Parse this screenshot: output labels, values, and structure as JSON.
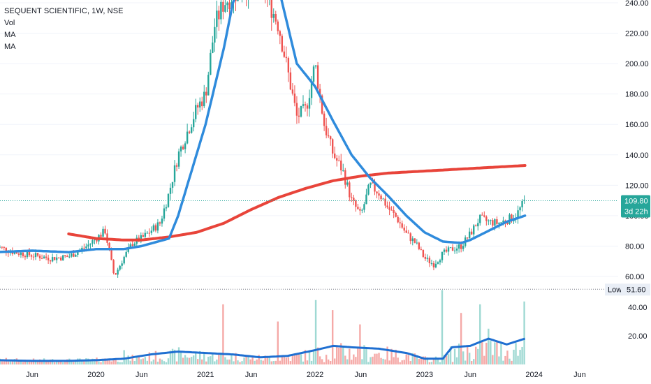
{
  "chart_data": {
    "type": "candlestick",
    "title": "SEQUENT SCIENTIFIC, 1W, NSE",
    "legend": [
      "Vol",
      "MA",
      "MA"
    ],
    "price_axis": {
      "ticks": [
        "240.00",
        "220.00",
        "200.00",
        "180.00",
        "160.00",
        "140.00",
        "120.00",
        "100.00",
        "80.00",
        "60.00"
      ],
      "min": 46,
      "max": 248
    },
    "volume_axis": {
      "ticks": [
        "40.00",
        "20.00"
      ],
      "min": 0,
      "max": 52
    },
    "x_ticks": [
      "Jun",
      "2020",
      "Jun",
      "2021",
      "Jun",
      "2022",
      "Jun",
      "2023",
      "Jun",
      "2024",
      "Jun"
    ],
    "last_price": "109.80",
    "countdown": "3d 22h",
    "low_label": "Low",
    "low_value": "51.60",
    "colors": {
      "up": "#26a69a",
      "down": "#ef5350",
      "ma_fast": "#2f8bdc",
      "ma_slow": "#e8443a",
      "vol_ma": "#1f6fd1",
      "grid": "#f0f3fa",
      "last_price_bg": "#26a69a"
    },
    "price_series_control": [
      [
        "2019-02",
        80
      ],
      [
        "2019-04",
        76
      ],
      [
        "2019-06",
        74
      ],
      [
        "2019-08",
        72
      ],
      [
        "2019-10",
        73
      ],
      [
        "2019-12",
        80
      ],
      [
        "2020-02",
        90
      ],
      [
        "2020-03",
        60
      ],
      [
        "2020-04",
        72
      ],
      [
        "2020-05",
        82
      ],
      [
        "2020-06",
        85
      ],
      [
        "2020-08",
        95
      ],
      [
        "2020-09",
        115
      ],
      [
        "2020-10",
        140
      ],
      [
        "2020-11",
        155
      ],
      [
        "2020-12",
        170
      ],
      [
        "2021-01",
        180
      ],
      [
        "2021-02",
        225
      ],
      [
        "2021-03",
        240
      ],
      [
        "2021-04",
        245
      ],
      [
        "2021-05",
        250
      ],
      [
        "2021-07",
        255
      ],
      [
        "2021-08",
        240
      ],
      [
        "2021-09",
        225
      ],
      [
        "2021-10",
        195
      ],
      [
        "2021-11",
        165
      ],
      [
        "2021-12",
        170
      ],
      [
        "2022-01",
        200
      ],
      [
        "2022-02",
        160
      ],
      [
        "2022-03",
        140
      ],
      [
        "2022-04",
        130
      ],
      [
        "2022-05",
        110
      ],
      [
        "2022-06",
        100
      ],
      [
        "2022-07",
        120
      ],
      [
        "2022-08",
        115
      ],
      [
        "2022-09",
        105
      ],
      [
        "2022-10",
        98
      ],
      [
        "2022-11",
        88
      ],
      [
        "2022-12",
        82
      ],
      [
        "2023-01",
        72
      ],
      [
        "2023-02",
        68
      ],
      [
        "2023-03",
        75
      ],
      [
        "2023-04",
        78
      ],
      [
        "2023-05",
        80
      ],
      [
        "2023-06",
        88
      ],
      [
        "2023-07",
        98
      ],
      [
        "2023-08",
        96
      ],
      [
        "2023-09",
        95
      ],
      [
        "2023-10",
        97
      ],
      [
        "2023-11",
        100
      ],
      [
        "2023-12",
        109.8
      ]
    ],
    "ma_fast_control": [
      [
        "2019-02",
        76
      ],
      [
        "2019-06",
        77
      ],
      [
        "2019-10",
        76
      ],
      [
        "2020-01",
        78
      ],
      [
        "2020-04",
        78
      ],
      [
        "2020-06",
        80
      ],
      [
        "2020-09",
        85
      ],
      [
        "2020-10",
        100
      ],
      [
        "2020-11",
        120
      ],
      [
        "2020-12",
        140
      ],
      [
        "2021-01",
        160
      ],
      [
        "2021-02",
        185
      ],
      [
        "2021-03",
        210
      ],
      [
        "2021-04",
        240
      ],
      [
        "2021-05",
        255
      ],
      [
        "2021-07",
        262
      ],
      [
        "2021-09",
        250
      ],
      [
        "2021-10",
        225
      ],
      [
        "2021-11",
        200
      ],
      [
        "2022-01",
        185
      ],
      [
        "2022-03",
        162
      ],
      [
        "2022-05",
        140
      ],
      [
        "2022-07",
        125
      ],
      [
        "2022-09",
        113
      ],
      [
        "2022-11",
        100
      ],
      [
        "2023-01",
        89
      ],
      [
        "2023-03",
        83
      ],
      [
        "2023-05",
        82
      ],
      [
        "2023-06",
        84
      ],
      [
        "2023-08",
        90
      ],
      [
        "2023-10",
        96
      ],
      [
        "2023-12",
        100
      ]
    ],
    "ma_slow_control": [
      [
        "2019-10",
        88
      ],
      [
        "2020-01",
        85
      ],
      [
        "2020-04",
        84
      ],
      [
        "2020-06",
        84
      ],
      [
        "2020-09",
        86
      ],
      [
        "2020-12",
        89
      ],
      [
        "2021-03",
        95
      ],
      [
        "2021-06",
        104
      ],
      [
        "2021-09",
        112
      ],
      [
        "2021-12",
        118
      ],
      [
        "2022-03",
        123
      ],
      [
        "2022-06",
        126
      ],
      [
        "2022-09",
        128
      ],
      [
        "2022-12",
        129
      ],
      [
        "2023-03",
        130
      ],
      [
        "2023-06",
        131
      ],
      [
        "2023-09",
        132
      ],
      [
        "2023-12",
        133
      ]
    ],
    "volume_ma_control": [
      [
        "2019-02",
        3
      ],
      [
        "2019-06",
        2.5
      ],
      [
        "2019-10",
        2.5
      ],
      [
        "2020-01",
        3
      ],
      [
        "2020-04",
        4
      ],
      [
        "2020-07",
        7
      ],
      [
        "2020-10",
        9
      ],
      [
        "2021-01",
        8
      ],
      [
        "2021-04",
        7
      ],
      [
        "2021-07",
        5
      ],
      [
        "2021-10",
        6
      ],
      [
        "2022-01",
        10
      ],
      [
        "2022-03",
        13
      ],
      [
        "2022-05",
        12
      ],
      [
        "2022-08",
        11
      ],
      [
        "2022-11",
        8
      ],
      [
        "2023-01",
        4
      ],
      [
        "2023-03",
        4
      ],
      [
        "2023-04",
        12
      ],
      [
        "2023-06",
        13
      ],
      [
        "2023-08",
        18
      ],
      [
        "2023-10",
        14
      ],
      [
        "2023-12",
        18
      ]
    ],
    "volume_spikes": [
      [
        "2020-04",
        10
      ],
      [
        "2020-10",
        12
      ],
      [
        "2021-03",
        42
      ],
      [
        "2021-09",
        30
      ],
      [
        "2022-01",
        45
      ],
      [
        "2022-03",
        38
      ],
      [
        "2022-06",
        28
      ],
      [
        "2023-03",
        52
      ],
      [
        "2023-05",
        36
      ],
      [
        "2023-07",
        42
      ],
      [
        "2023-08",
        25
      ],
      [
        "2023-12",
        44
      ]
    ]
  }
}
